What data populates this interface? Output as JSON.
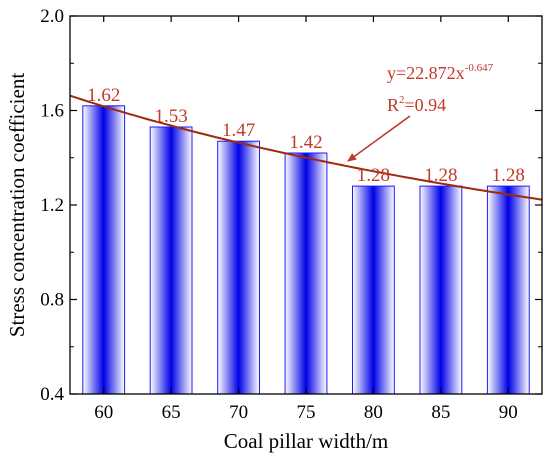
{
  "chart_data": {
    "type": "bar",
    "categories": [
      "60",
      "65",
      "70",
      "75",
      "80",
      "85",
      "90"
    ],
    "values": [
      1.62,
      1.53,
      1.47,
      1.42,
      1.28,
      1.28,
      1.28
    ],
    "data_labels": [
      "1.62",
      "1.53",
      "1.47",
      "1.42",
      "1.28",
      "1.28",
      "1.28"
    ],
    "xlabel": "Coal pillar width/m",
    "ylabel": "Stress concentration coefficient",
    "ylim": [
      0.4,
      2.0
    ],
    "yticks": [
      "0.4",
      "0.8",
      "1.2",
      "1.6",
      "2.0"
    ],
    "fit": {
      "a": 22.872,
      "b": -0.647,
      "equation_base": "y=22.872x",
      "equation_exp": "-0.647",
      "r2_base": "R",
      "r2_sup": "2",
      "r2_rest": "=0.94"
    },
    "grid": false,
    "colors": {
      "bar_edge": "#1a1aff",
      "bar_center": "#0000e6",
      "bar_outer": "#ffffff",
      "fit_line": "#a0280f",
      "annotation": "#c0392b"
    }
  }
}
